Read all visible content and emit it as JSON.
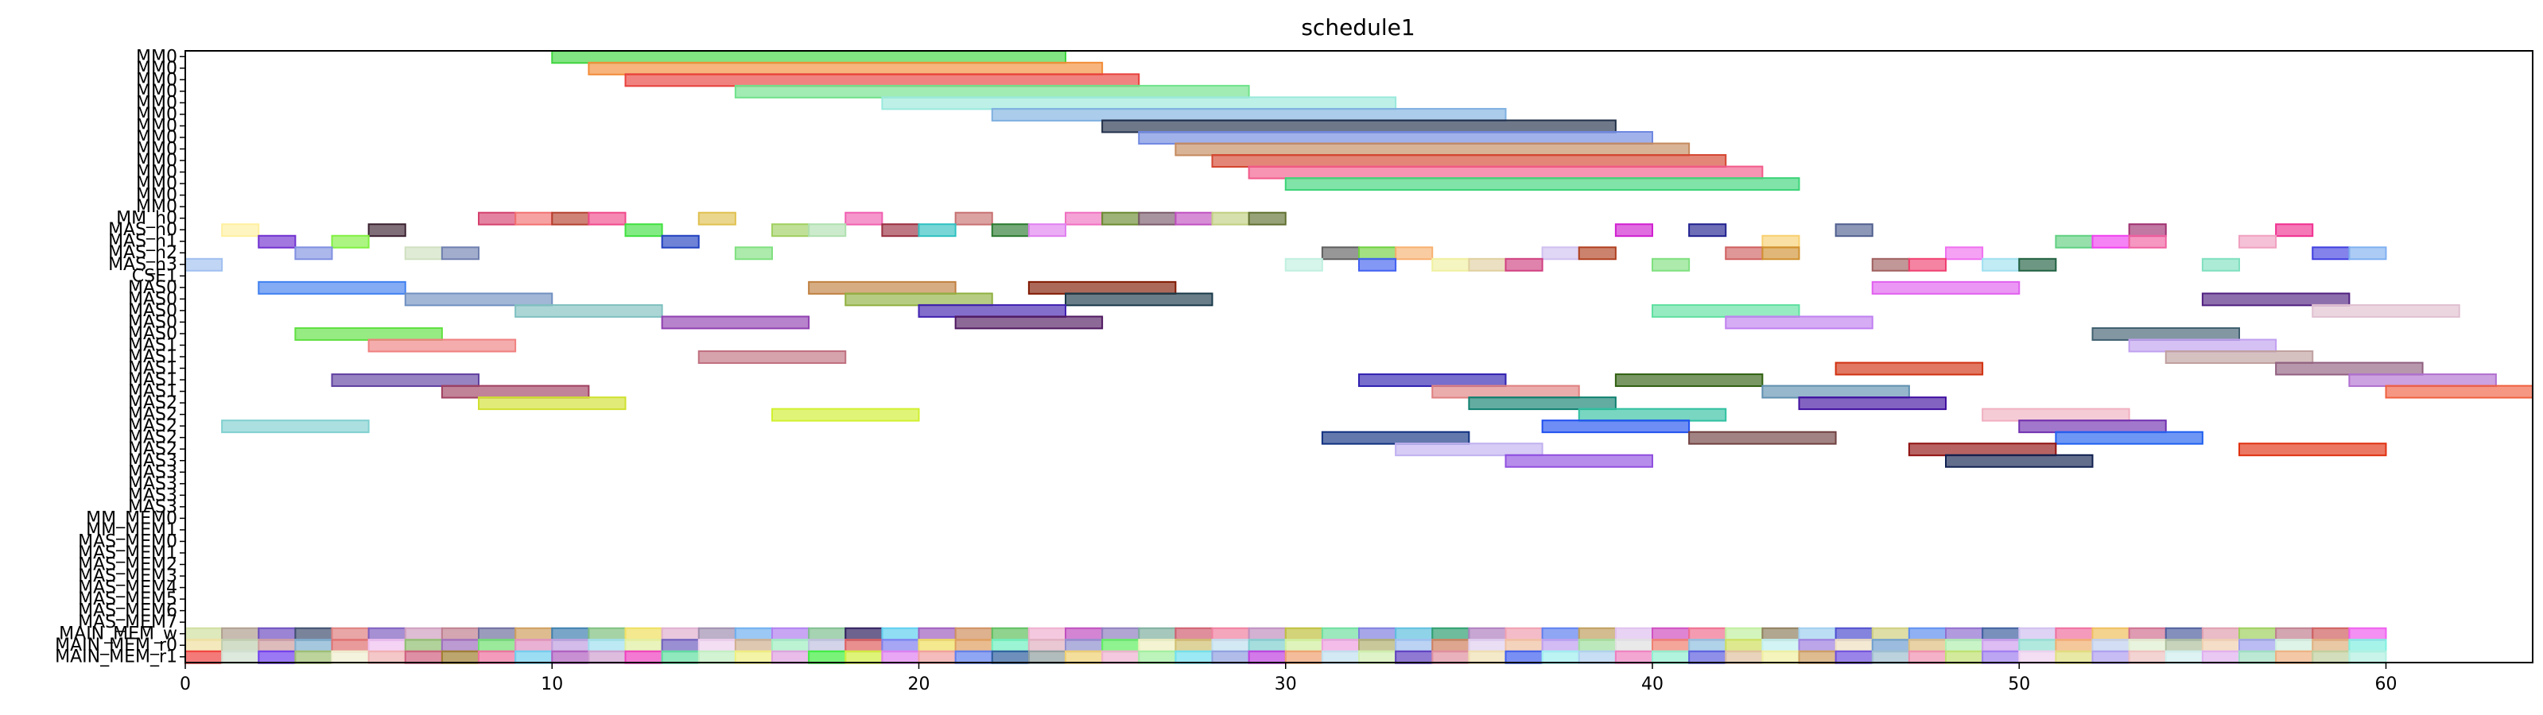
{
  "chart_data": {
    "type": "gantt",
    "title": "schedule1",
    "xlabel": "",
    "ylabel": "",
    "xlim": [
      0,
      64
    ],
    "xticks": [
      "0",
      "10",
      "20",
      "30",
      "40",
      "50",
      "60"
    ],
    "xtick_values": [
      0,
      10,
      20,
      30,
      40,
      50,
      60
    ],
    "grid": false,
    "rows": [
      "MM0",
      "MM0",
      "MM0",
      "MM0",
      "MM0",
      "MM0",
      "MM0",
      "MM0",
      "MM0",
      "MM0",
      "MM0",
      "MM0",
      "MM0",
      "MM0",
      "MM_h0",
      "MAS_h0",
      "MAS_h1",
      "MAS_h2",
      "MAS_h3",
      "CSE1",
      "MAS0",
      "MAS0",
      "MAS0",
      "MAS0",
      "MAS0",
      "MAS1",
      "MAS1",
      "MAS1",
      "MAS1",
      "MAS1",
      "MAS2",
      "MAS2",
      "MAS2",
      "MAS2",
      "MAS2",
      "MAS3",
      "MAS3",
      "MAS3",
      "MAS3",
      "MAS3",
      "MM_MEM0",
      "MM_MEM1",
      "MAS_MEM0",
      "MAS_MEM1",
      "MAS_MEM2",
      "MAS_MEM3",
      "MAS_MEM4",
      "MAS_MEM5",
      "MAS_MEM6",
      "MAS_MEM7",
      "MAIN_MEM_w",
      "MAIN_MEM_r0",
      "MAIN_MEM_r1"
    ],
    "tasks": [
      {
        "row": 0,
        "start": 10,
        "end": 24,
        "color": "#3fd43f"
      },
      {
        "row": 1,
        "start": 11,
        "end": 25,
        "color": "#f28c38"
      },
      {
        "row": 2,
        "start": 12,
        "end": 26,
        "color": "#e8403c"
      },
      {
        "row": 3,
        "start": 15,
        "end": 29,
        "color": "#6fe28a"
      },
      {
        "row": 4,
        "start": 19,
        "end": 33,
        "color": "#9ae9dc"
      },
      {
        "row": 5,
        "start": 22,
        "end": 36,
        "color": "#7fb0e0"
      },
      {
        "row": 6,
        "start": 25,
        "end": 39,
        "color": "#22304a"
      },
      {
        "row": 7,
        "start": 26,
        "end": 40,
        "color": "#6f88e0"
      },
      {
        "row": 8,
        "start": 27,
        "end": 41,
        "color": "#c58a5e"
      },
      {
        "row": 9,
        "start": 28,
        "end": 42,
        "color": "#d44530"
      },
      {
        "row": 10,
        "start": 29,
        "end": 43,
        "color": "#f25a8a"
      },
      {
        "row": 11,
        "start": 30,
        "end": 44,
        "color": "#3cd478"
      },
      {
        "row": 14,
        "start": 8,
        "end": 9,
        "color": "#d4406e"
      },
      {
        "row": 14,
        "start": 9,
        "end": 10,
        "color": "#f27070"
      },
      {
        "row": 14,
        "start": 10,
        "end": 11,
        "color": "#b5402e"
      },
      {
        "row": 14,
        "start": 11,
        "end": 12,
        "color": "#f04a8c"
      },
      {
        "row": 14,
        "start": 14,
        "end": 15,
        "color": "#e0c050"
      },
      {
        "row": 14,
        "start": 18,
        "end": 19,
        "color": "#f060b0"
      },
      {
        "row": 14,
        "start": 21,
        "end": 22,
        "color": "#c87070"
      },
      {
        "row": 14,
        "start": 24,
        "end": 25,
        "color": "#f070c0"
      },
      {
        "row": 14,
        "start": 25,
        "end": 26,
        "color": "#6a8a30"
      },
      {
        "row": 14,
        "start": 26,
        "end": 27,
        "color": "#7a5a6a"
      },
      {
        "row": 14,
        "start": 27,
        "end": 28,
        "color": "#c050c0"
      },
      {
        "row": 14,
        "start": 28,
        "end": 29,
        "color": "#c0d080"
      },
      {
        "row": 14,
        "start": 29,
        "end": 30,
        "color": "#607030"
      },
      {
        "row": 15,
        "start": 1,
        "end": 2,
        "color": "#fff0a0"
      },
      {
        "row": 15,
        "start": 5,
        "end": 6,
        "color": "#3a2030"
      },
      {
        "row": 15,
        "start": 12,
        "end": 13,
        "color": "#40e040"
      },
      {
        "row": 15,
        "start": 16,
        "end": 17,
        "color": "#a0d060"
      },
      {
        "row": 15,
        "start": 17,
        "end": 18,
        "color": "#b0e0b0"
      },
      {
        "row": 15,
        "start": 19,
        "end": 20,
        "color": "#9a3040"
      },
      {
        "row": 15,
        "start": 20,
        "end": 21,
        "color": "#30c0c0"
      },
      {
        "row": 15,
        "start": 22,
        "end": 23,
        "color": "#2a7a30"
      },
      {
        "row": 15,
        "start": 23,
        "end": 24,
        "color": "#e080f0"
      },
      {
        "row": 15,
        "start": 39,
        "end": 40,
        "color": "#d020d0"
      },
      {
        "row": 15,
        "start": 41,
        "end": 42,
        "color": "#202090"
      },
      {
        "row": 15,
        "start": 45,
        "end": 46,
        "color": "#506090"
      },
      {
        "row": 15,
        "start": 53,
        "end": 54,
        "color": "#a03070"
      },
      {
        "row": 15,
        "start": 57,
        "end": 58,
        "color": "#f03090"
      },
      {
        "row": 16,
        "start": 2,
        "end": 3,
        "color": "#7030d0"
      },
      {
        "row": 16,
        "start": 4,
        "end": 5,
        "color": "#80f040"
      },
      {
        "row": 16,
        "start": 13,
        "end": 14,
        "color": "#2040c0"
      },
      {
        "row": 16,
        "start": 43,
        "end": 44,
        "color": "#f8d070"
      },
      {
        "row": 16,
        "start": 51,
        "end": 52,
        "color": "#60d080"
      },
      {
        "row": 16,
        "start": 52,
        "end": 53,
        "color": "#f040f0"
      },
      {
        "row": 16,
        "start": 53,
        "end": 54,
        "color": "#f060a0"
      },
      {
        "row": 16,
        "start": 56,
        "end": 57,
        "color": "#f0a0c0"
      },
      {
        "row": 17,
        "start": 3,
        "end": 4,
        "color": "#8090e0"
      },
      {
        "row": 17,
        "start": 6,
        "end": 7,
        "color": "#d0e0c0"
      },
      {
        "row": 17,
        "start": 7,
        "end": 8,
        "color": "#7080b0"
      },
      {
        "row": 17,
        "start": 15,
        "end": 16,
        "color": "#80e080"
      },
      {
        "row": 17,
        "start": 31,
        "end": 32,
        "color": "#606060"
      },
      {
        "row": 17,
        "start": 32,
        "end": 33,
        "color": "#70d040"
      },
      {
        "row": 17,
        "start": 33,
        "end": 34,
        "color": "#f8b070"
      },
      {
        "row": 17,
        "start": 37,
        "end": 38,
        "color": "#d0c0f0"
      },
      {
        "row": 17,
        "start": 38,
        "end": 39,
        "color": "#b04020"
      },
      {
        "row": 17,
        "start": 42,
        "end": 43,
        "color": "#d06060"
      },
      {
        "row": 17,
        "start": 43,
        "end": 44,
        "color": "#d09030"
      },
      {
        "row": 17,
        "start": 48,
        "end": 49,
        "color": "#f070f0"
      },
      {
        "row": 17,
        "start": 58,
        "end": 59,
        "color": "#4040e0"
      },
      {
        "row": 17,
        "start": 59,
        "end": 60,
        "color": "#80b0f0"
      },
      {
        "row": 18,
        "start": 0,
        "end": 1,
        "color": "#a0c0f0"
      },
      {
        "row": 18,
        "start": 30,
        "end": 31,
        "color": "#c0f0e0"
      },
      {
        "row": 18,
        "start": 32,
        "end": 33,
        "color": "#4060f0"
      },
      {
        "row": 18,
        "start": 34,
        "end": 35,
        "color": "#f0f0a0"
      },
      {
        "row": 18,
        "start": 35,
        "end": 36,
        "color": "#e0d0a0"
      },
      {
        "row": 18,
        "start": 36,
        "end": 37,
        "color": "#d04080"
      },
      {
        "row": 18,
        "start": 40,
        "end": 41,
        "color": "#80e080"
      },
      {
        "row": 18,
        "start": 46,
        "end": 47,
        "color": "#a06060"
      },
      {
        "row": 18,
        "start": 47,
        "end": 48,
        "color": "#f04070"
      },
      {
        "row": 18,
        "start": 49,
        "end": 50,
        "color": "#a0e0f0"
      },
      {
        "row": 18,
        "start": 50,
        "end": 51,
        "color": "#206040"
      },
      {
        "row": 18,
        "start": 55,
        "end": 56,
        "color": "#80e0c0"
      },
      {
        "row": 20,
        "start": 2,
        "end": 6,
        "color": "#4080f0"
      },
      {
        "row": 20,
        "start": 17,
        "end": 21,
        "color": "#c08040"
      },
      {
        "row": 20,
        "start": 23,
        "end": 27,
        "color": "#801800"
      },
      {
        "row": 20,
        "start": 46,
        "end": 50,
        "color": "#e060f0"
      },
      {
        "row": 21,
        "start": 6,
        "end": 10,
        "color": "#7090c0"
      },
      {
        "row": 21,
        "start": 18,
        "end": 22,
        "color": "#90b040"
      },
      {
        "row": 21,
        "start": 24,
        "end": 28,
        "color": "#183848"
      },
      {
        "row": 21,
        "start": 55,
        "end": 59,
        "color": "#502080"
      },
      {
        "row": 22,
        "start": 9,
        "end": 13,
        "color": "#80c0c0"
      },
      {
        "row": 22,
        "start": 20,
        "end": 24,
        "color": "#4020b0"
      },
      {
        "row": 22,
        "start": 40,
        "end": 44,
        "color": "#60e0a0"
      },
      {
        "row": 22,
        "start": 58,
        "end": 62,
        "color": "#e0c0d0"
      },
      {
        "row": 23,
        "start": 13,
        "end": 17,
        "color": "#9040b0"
      },
      {
        "row": 23,
        "start": 21,
        "end": 25,
        "color": "#501860"
      },
      {
        "row": 23,
        "start": 42,
        "end": 46,
        "color": "#c080f0"
      },
      {
        "row": 24,
        "start": 3,
        "end": 7,
        "color": "#60e040"
      },
      {
        "row": 24,
        "start": 52,
        "end": 56,
        "color": "#406070"
      },
      {
        "row": 25,
        "start": 5,
        "end": 9,
        "color": "#f08080"
      },
      {
        "row": 25,
        "start": 53,
        "end": 57,
        "color": "#c0a0f0"
      },
      {
        "row": 26,
        "start": 14,
        "end": 18,
        "color": "#c07080"
      },
      {
        "row": 26,
        "start": 54,
        "end": 58,
        "color": "#c0a0a0"
      },
      {
        "row": 27,
        "start": 45,
        "end": 49,
        "color": "#d03010"
      },
      {
        "row": 27,
        "start": 57,
        "end": 61,
        "color": "#906080"
      },
      {
        "row": 28,
        "start": 4,
        "end": 8,
        "color": "#6040a0"
      },
      {
        "row": 28,
        "start": 32,
        "end": 36,
        "color": "#3020b0"
      },
      {
        "row": 28,
        "start": 39,
        "end": 43,
        "color": "#306010"
      },
      {
        "row": 28,
        "start": 59,
        "end": 63,
        "color": "#b070d0"
      },
      {
        "row": 29,
        "start": 7,
        "end": 11,
        "color": "#a04060"
      },
      {
        "row": 29,
        "start": 34,
        "end": 38,
        "color": "#e08080"
      },
      {
        "row": 29,
        "start": 43,
        "end": 47,
        "color": "#6090b0"
      },
      {
        "row": 29,
        "start": 60,
        "end": 64,
        "color": "#f06040"
      },
      {
        "row": 30,
        "start": 8,
        "end": 12,
        "color": "#d0e030"
      },
      {
        "row": 30,
        "start": 35,
        "end": 39,
        "color": "#108070"
      },
      {
        "row": 30,
        "start": 44,
        "end": 48,
        "color": "#4010a0"
      },
      {
        "row": 31,
        "start": 16,
        "end": 20,
        "color": "#d0f030"
      },
      {
        "row": 31,
        "start": 38,
        "end": 42,
        "color": "#30c0a0"
      },
      {
        "row": 31,
        "start": 49,
        "end": 53,
        "color": "#f0b0c0"
      },
      {
        "row": 32,
        "start": 1,
        "end": 5,
        "color": "#80d0d0"
      },
      {
        "row": 32,
        "start": 37,
        "end": 41,
        "color": "#2050f0"
      },
      {
        "row": 32,
        "start": 50,
        "end": 54,
        "color": "#7030b0"
      },
      {
        "row": 33,
        "start": 31,
        "end": 35,
        "color": "#103080"
      },
      {
        "row": 33,
        "start": 41,
        "end": 45,
        "color": "#704040"
      },
      {
        "row": 33,
        "start": 51,
        "end": 55,
        "color": "#2060f0"
      },
      {
        "row": 34,
        "start": 33,
        "end": 37,
        "color": "#c0b0f0"
      },
      {
        "row": 34,
        "start": 47,
        "end": 51,
        "color": "#901010"
      },
      {
        "row": 34,
        "start": 56,
        "end": 60,
        "color": "#e03010"
      },
      {
        "row": 35,
        "start": 36,
        "end": 40,
        "color": "#9050e0"
      },
      {
        "row": 35,
        "start": 48,
        "end": 52,
        "color": "#102050"
      }
    ],
    "mem_pattern_colors": {
      "MAIN_MEM_w": [
        "#d0e0a0",
        "#b0a090",
        "#7050c0",
        "#405070",
        "#e08080",
        "#8060c0",
        "#d0a0c0",
        "#c08090",
        "#7070a0",
        "#d0a060",
        "#4080b0",
        "#80c080",
        "#f0e060",
        "#e0b0d0",
        "#a090b0",
        "#70b0f0",
        "#b080f0",
        "#80c090",
        "#302060",
        "#60d0f0",
        "#a060c0",
        "#d09060",
        "#60c060",
        "#f0b0d0",
        "#c050c0",
        "#9080c0",
        "#80b0a0",
        "#d06070",
        "#f080a0",
        "#c090c0",
        "#c0c040",
        "#70e0a0",
        "#8080e0",
        "#60c0e0",
        "#30a070",
        "#b080c0",
        "#f0a0b0",
        "#6080f0",
        "#c0a060",
        "#e0c0f0",
        "#d050c0",
        "#f07090",
        "#c0f0a0",
        "#908060",
        "#a0d0f0",
        "#5050d0",
        "#d0d080",
        "#6090f0",
        "#9070d0",
        "#4060a0",
        "#d0c0f0",
        "#f070a0",
        "#f0c060",
        "#d07090",
        "#5060a0",
        "#e0a0b0",
        "#a0d060",
        "#c08090",
        "#d06060",
        "#f060f0"
      ],
      "MAIN_MEM_r0": [
        "#f0e0a0",
        "#c0d0b0",
        "#d0a0a0",
        "#80b0d0",
        "#e07070",
        "#f0c0f0",
        "#90c070",
        "#a070c0",
        "#70e070",
        "#e090c0",
        "#c0a0e0",
        "#a0e0f0",
        "#e0f0a0",
        "#7060c0",
        "#f0d0f0",
        "#d0b090",
        "#a0f0c0",
        "#c0c0e0",
        "#e06060",
        "#8080f0",
        "#f0e060",
        "#e0a060",
        "#70f0c0",
        "#e0b0c0",
        "#9090d0",
        "#60f060",
        "#f0f0c0",
        "#d0c070",
        "#c0e0f0",
        "#80d0d0",
        "#d0f0a0",
        "#f0a0e0",
        "#b0b070",
        "#a0c0f0",
        "#d08060",
        "#e0d0f0",
        "#f0c0a0",
        "#c0a0f0",
        "#a0e0a0",
        "#e0e0e0",
        "#f08070",
        "#90c0e0",
        "#d0e060",
        "#c0f0f0",
        "#a080e0",
        "#f0e0c0",
        "#70a0d0",
        "#e0c080",
        "#b0f0b0",
        "#d0a0f0",
        "#90e0d0",
        "#f0b070",
        "#c0d0f0",
        "#e0f0d0",
        "#b0c0a0",
        "#f0d0b0",
        "#a0a0f0",
        "#d0f0e0",
        "#e0b080",
        "#80f0e0"
      ],
      "MAIN_MEM_r1": [
        "#f04040",
        "#d0e0d0",
        "#7040f0",
        "#a0c070",
        "#f0f0d0",
        "#f0b0b0",
        "#d06080",
        "#a08030",
        "#f070a0",
        "#70d0f0",
        "#b060c0",
        "#d0a0d0",
        "#f040c0",
        "#60e0a0",
        "#c0f0c0",
        "#f0f080",
        "#e0a0e0",
        "#40f040",
        "#d0f040",
        "#e080f0",
        "#f0a0a0",
        "#6080f0",
        "#3060a0",
        "#90a0a0",
        "#f0d070",
        "#f0b0d0",
        "#a0f0a0",
        "#70e0f0",
        "#90a0e0",
        "#c040e0",
        "#f0a070",
        "#c0e0f0",
        "#d0f0b0",
        "#6040c0",
        "#e090a0",
        "#f0e0b0",
        "#4060f0",
        "#a0f0f0",
        "#b0d0f0",
        "#f080c0",
        "#90f0d0",
        "#6060e0",
        "#e0c0a0",
        "#f0f0a0",
        "#d0a060",
        "#7050e0",
        "#a0c0d0",
        "#f090b0",
        "#c0e070",
        "#a080f0",
        "#f0d0f0",
        "#e0e080",
        "#b0a0f0",
        "#f0c0c0",
        "#d0f0f0",
        "#e0b0f0",
        "#a0e0c0",
        "#f0b080",
        "#c0d0a0",
        "#b0f0e0"
      ]
    }
  }
}
